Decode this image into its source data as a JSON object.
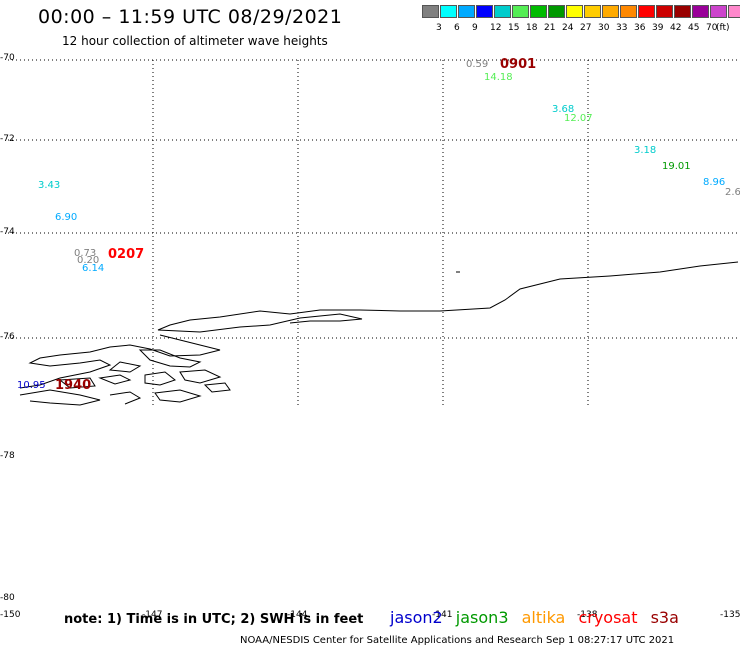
{
  "header": {
    "title": "00:00 – 11:59 UTC 08/29/2021",
    "subtitle": "12 hour collection of altimeter wave heights"
  },
  "legend": {
    "unit": "(ft)",
    "colors": [
      "#808080",
      "#00ffff",
      "#00aaff",
      "#0000ff",
      "#00cccc",
      "#55ee55",
      "#00bb00",
      "#009900",
      "#ffff00",
      "#ffcc00",
      "#ffaa00",
      "#ff8800",
      "#ff0000",
      "#cc0000",
      "#990000",
      "#990099",
      "#cc44cc",
      "#ff88cc",
      "#000000"
    ],
    "labels": [
      "3",
      "6",
      "9",
      "12",
      "15",
      "18",
      "21",
      "24",
      "27",
      "30",
      "33",
      "36",
      "39",
      "42",
      "45",
      "70"
    ]
  },
  "axes": {
    "lat_labels": [
      "-70",
      "-72",
      "-74",
      "-76",
      "-78",
      "-80"
    ],
    "lon_labels": [
      "-150",
      "-147",
      "-144",
      "-141",
      "-138",
      "-135"
    ]
  },
  "observations": [
    {
      "text": "0.59",
      "color": "#808080",
      "kind": "value"
    },
    {
      "text": "0901",
      "color": "#990000",
      "kind": "time"
    },
    {
      "text": "14.18",
      "color": "#55ee55",
      "kind": "value"
    },
    {
      "text": "3.68",
      "color": "#00cccc",
      "kind": "value"
    },
    {
      "text": "12.07",
      "color": "#55ee55",
      "kind": "value"
    },
    {
      "text": "3.18",
      "color": "#00cccc",
      "kind": "value"
    },
    {
      "text": "19.01",
      "color": "#009900",
      "kind": "value"
    },
    {
      "text": "8.96",
      "color": "#00aaff",
      "kind": "value"
    },
    {
      "text": "2.6",
      "color": "#808080",
      "kind": "value"
    },
    {
      "text": "3.43",
      "color": "#00cccc",
      "kind": "value"
    },
    {
      "text": "6.90",
      "color": "#00aaff",
      "kind": "value"
    },
    {
      "text": "0.73",
      "color": "#808080",
      "kind": "value"
    },
    {
      "text": "0.20",
      "color": "#808080",
      "kind": "value"
    },
    {
      "text": "6.14",
      "color": "#00aaff",
      "kind": "value"
    },
    {
      "text": "0207",
      "color": "#ff0000",
      "kind": "time"
    },
    {
      "text": "10.95",
      "color": "#0000cc",
      "kind": "value"
    },
    {
      "text": "1940",
      "color": "#990000",
      "kind": "time"
    }
  ],
  "footer": {
    "note": "note: 1) Time is in UTC; 2) SWH is in feet",
    "satellites": [
      {
        "name": "jason2",
        "color": "#0000cc"
      },
      {
        "name": "jason3",
        "color": "#009900"
      },
      {
        "name": "altika",
        "color": "#ff9900"
      },
      {
        "name": "cryosat",
        "color": "#ff0000"
      },
      {
        "name": "s3a",
        "color": "#990000"
      }
    ],
    "credit": "NOAA/NESDIS Center for Satellite Applications and Research    Sep  1 08:27:17 UTC 2021"
  }
}
